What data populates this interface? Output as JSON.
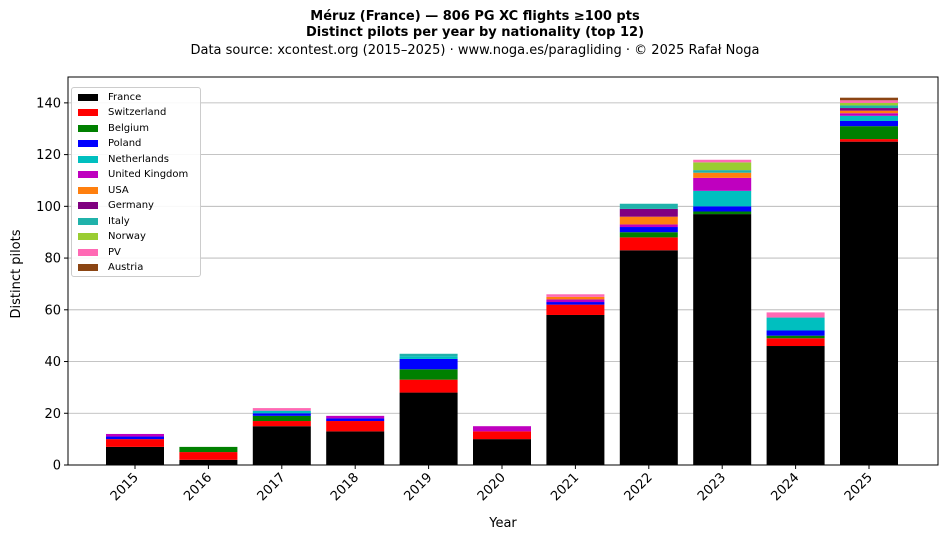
{
  "chart_data": {
    "type": "bar",
    "stacked": true,
    "title": "Méruz (France)  —  806 PG XC flights ≥100 pts",
    "subtitle": "Distinct pilots per year by nationality (top 12)",
    "caption": "Data source: xcontest.org (2015–2025)  ·  www.noga.es/paragliding  ·  © 2025 Rafał Noga",
    "xlabel": "Year",
    "ylabel": "Distinct pilots",
    "ylim": [
      0,
      150
    ],
    "yticks": [
      0,
      20,
      40,
      60,
      80,
      100,
      120,
      140
    ],
    "grid": "horizontal",
    "legend_position": "top-left",
    "categories": [
      "2015",
      "2016",
      "2017",
      "2018",
      "2019",
      "2020",
      "2021",
      "2022",
      "2023",
      "2024",
      "2025"
    ],
    "series": [
      {
        "name": "France",
        "color": "#000000",
        "values": [
          7,
          2,
          15,
          13,
          28,
          10,
          58,
          83,
          97,
          46,
          125
        ]
      },
      {
        "name": "Switzerland",
        "color": "#ff0000",
        "values": [
          3,
          3,
          2,
          4,
          5,
          3,
          4,
          5,
          0,
          3,
          1
        ]
      },
      {
        "name": "Belgium",
        "color": "#008000",
        "values": [
          0,
          2,
          2,
          0,
          4,
          0,
          0,
          2,
          1,
          1,
          5
        ]
      },
      {
        "name": "Poland",
        "color": "#0000ff",
        "values": [
          1,
          0,
          1,
          1,
          4,
          0,
          1,
          2,
          2,
          2,
          2
        ]
      },
      {
        "name": "Netherlands",
        "color": "#00bfbf",
        "values": [
          0,
          0,
          1,
          0,
          1,
          0,
          0,
          0,
          6,
          5,
          2
        ]
      },
      {
        "name": "United Kingdom",
        "color": "#bf00bf",
        "values": [
          1,
          0,
          0,
          1,
          0,
          2,
          1,
          1,
          5,
          0,
          1
        ]
      },
      {
        "name": "USA",
        "color": "#ff7f0e",
        "values": [
          0,
          0,
          0,
          0,
          0,
          0,
          1,
          3,
          2,
          0,
          1
        ]
      },
      {
        "name": "Germany",
        "color": "#800080",
        "values": [
          0,
          0,
          0,
          0,
          0,
          0,
          0,
          3,
          0,
          0,
          1
        ]
      },
      {
        "name": "Italy",
        "color": "#20b2aa",
        "values": [
          0,
          0,
          0,
          0,
          1,
          0,
          0,
          2,
          1,
          0,
          1
        ]
      },
      {
        "name": "Norway",
        "color": "#9acd32",
        "values": [
          0,
          0,
          0,
          0,
          0,
          0,
          0,
          0,
          3,
          0,
          1
        ]
      },
      {
        "name": "PV",
        "color": "#ff69b4",
        "values": [
          0,
          0,
          1,
          0,
          0,
          0,
          1,
          0,
          1,
          2,
          1
        ]
      },
      {
        "name": "Austria",
        "color": "#8b4513",
        "values": [
          0,
          0,
          0,
          0,
          0,
          0,
          0,
          0,
          0,
          0,
          1
        ]
      }
    ]
  }
}
